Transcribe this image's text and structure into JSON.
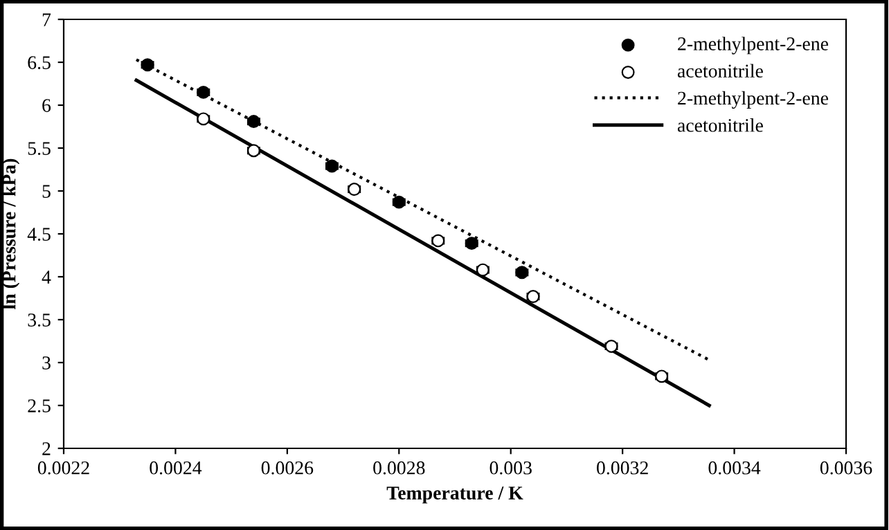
{
  "chart_data": {
    "type": "scatter",
    "xlabel": "Temperature / K",
    "ylabel": "ln (Pressure / kPa)",
    "xlim": [
      0.0022,
      0.0036
    ],
    "xticks": [
      0.0022,
      0.0024,
      0.0026,
      0.0028,
      {
        "value": 0.003,
        "label": "0.003"
      },
      0.0032,
      0.0034,
      0.0036
    ],
    "ylim": [
      2,
      7
    ],
    "yticks": [
      2,
      2.5,
      3,
      3.5,
      4,
      4.5,
      5,
      5.5,
      6,
      6.5,
      7
    ],
    "grid": false,
    "legend": "top right",
    "series": [
      {
        "name": "2-methylpent-2-ene",
        "marker": "circle",
        "color": "#000000",
        "x": [
          0.00235,
          0.00245,
          0.00254,
          0.00268,
          0.0028,
          0.00293,
          0.00302
        ],
        "values": [
          6.47,
          6.15,
          5.81,
          5.29,
          4.87,
          4.39,
          4.05
        ],
        "xerrors": [
          1e-05,
          1e-05,
          1e-05,
          1e-05,
          1e-05,
          1e-05,
          1e-05
        ]
      },
      {
        "name": "acetonitrile",
        "marker": "circle",
        "color": "#000000",
        "x": [
          0.00245,
          0.00254,
          0.00272,
          0.00287,
          0.00295,
          0.00304,
          0.00318,
          0.00327
        ],
        "values": [
          5.84,
          5.47,
          5.02,
          4.42,
          4.08,
          3.77,
          3.19,
          2.84
        ],
        "xerrors": [
          1e-05,
          1e-05,
          1e-05,
          1e-05,
          1e-05,
          1e-05,
          1e-05,
          1e-05
        ]
      },
      {
        "name": "2-methylpent-2-ene",
        "type": "line",
        "line_style": "dotted",
        "marker": "none",
        "color": "#000000",
        "x": [
          0.00233,
          0.003355
        ],
        "values": [
          6.53,
          3.03
        ]
      },
      {
        "name": "acetonitrile",
        "type": "line",
        "line_style": "solid",
        "marker": "none",
        "color": "#000000",
        "x": [
          0.00233,
          0.003355
        ],
        "values": [
          6.29,
          2.5
        ]
      }
    ]
  }
}
